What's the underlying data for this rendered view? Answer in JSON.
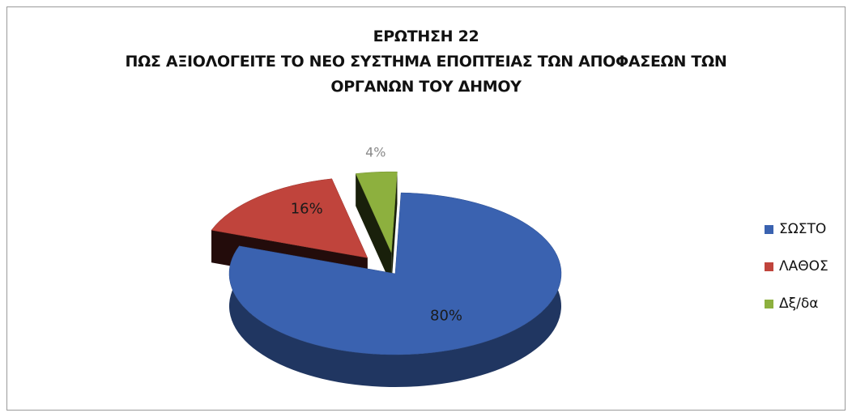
{
  "chart_data": {
    "type": "pie",
    "title": "ΕΡΩΤΗΣΗ 22",
    "subtitle": [
      "ΠΩΣ ΑΞΙΟΛΟΓΕΙΤΕ ΤΟ ΝΕΟ ΣΥΣΤΗΜΑ ΕΠΟΠΤΕΙΑΣ ΤΩΝ ΑΠΟΦΑΣΕΩΝ ΤΩΝ",
      "ΟΡΓΑΝΩΝ ΤΟΥ ΔΗΜΟΥ"
    ],
    "legend_position": "right",
    "slices": [
      {
        "label": "ΣΩΣΤΟ",
        "value": 80,
        "data_label": "80%",
        "color": "#3a62b0",
        "exploded": false
      },
      {
        "label": "ΛΑΘΟΣ",
        "value": 16,
        "data_label": "16%",
        "color": "#c0443c",
        "exploded": true
      },
      {
        "label": "Δξ/δα",
        "value": 4,
        "data_label": "4%",
        "color": "#8db03e",
        "exploded": true
      }
    ]
  }
}
